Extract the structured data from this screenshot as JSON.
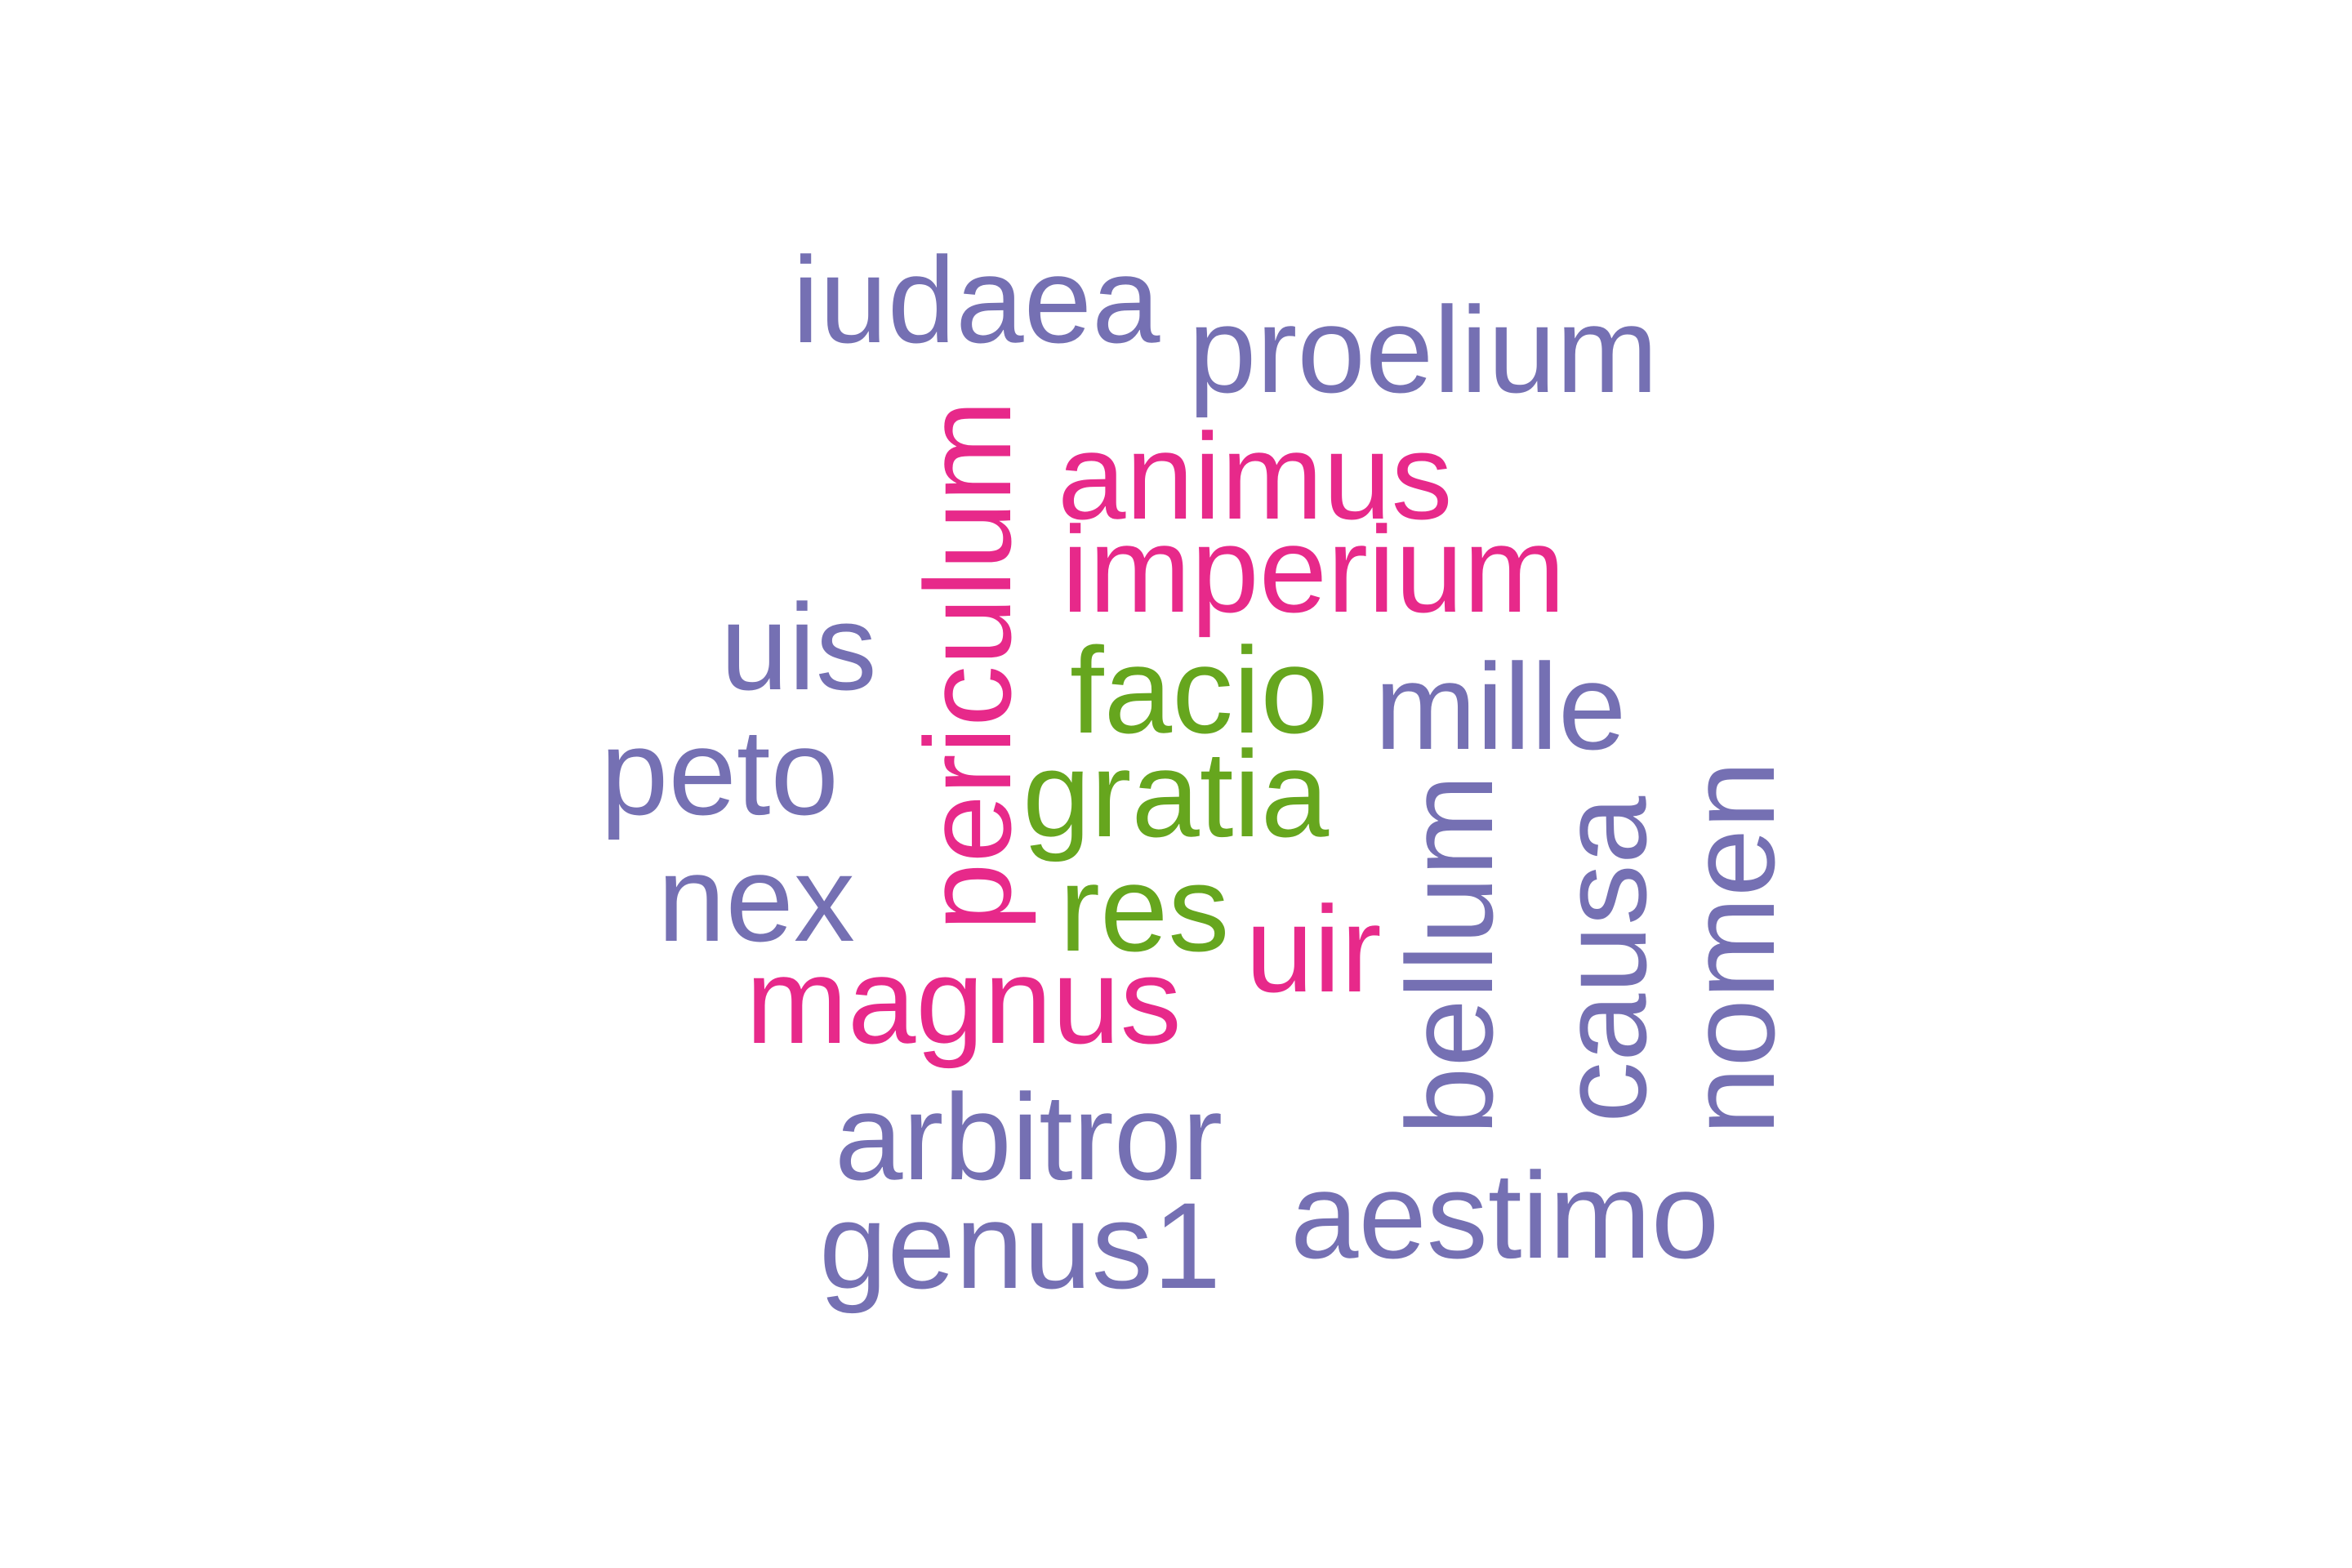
{
  "colors": {
    "purple": "#7570b3",
    "magenta": "#e7298a",
    "green": "#66a61e"
  },
  "words": [
    {
      "id": "iudaea",
      "text": "iudaea",
      "color": "#7570b3",
      "orientation": "horizontal"
    },
    {
      "id": "proelium",
      "text": "proelium",
      "color": "#7570b3",
      "orientation": "horizontal"
    },
    {
      "id": "animus",
      "text": "animus",
      "color": "#e7298a",
      "orientation": "horizontal"
    },
    {
      "id": "imperium",
      "text": "imperium",
      "color": "#e7298a",
      "orientation": "horizontal"
    },
    {
      "id": "uis",
      "text": "uis",
      "color": "#7570b3",
      "orientation": "horizontal"
    },
    {
      "id": "facio",
      "text": "facio",
      "color": "#66a61e",
      "orientation": "horizontal"
    },
    {
      "id": "mille",
      "text": "mille",
      "color": "#7570b3",
      "orientation": "horizontal"
    },
    {
      "id": "peto",
      "text": "peto",
      "color": "#7570b3",
      "orientation": "horizontal"
    },
    {
      "id": "gratia",
      "text": "gratia",
      "color": "#66a61e",
      "orientation": "horizontal"
    },
    {
      "id": "nex",
      "text": "nex",
      "color": "#7570b3",
      "orientation": "horizontal"
    },
    {
      "id": "res",
      "text": "res",
      "color": "#66a61e",
      "orientation": "horizontal"
    },
    {
      "id": "uir",
      "text": "uir",
      "color": "#e7298a",
      "orientation": "horizontal"
    },
    {
      "id": "magnus",
      "text": "magnus",
      "color": "#e7298a",
      "orientation": "horizontal"
    },
    {
      "id": "arbitror",
      "text": "arbitror",
      "color": "#7570b3",
      "orientation": "horizontal"
    },
    {
      "id": "genus1",
      "text": "genus1",
      "color": "#7570b3",
      "orientation": "horizontal"
    },
    {
      "id": "aestimo",
      "text": "aestimo",
      "color": "#7570b3",
      "orientation": "horizontal"
    },
    {
      "id": "periculum",
      "text": "periculum",
      "color": "#e7298a",
      "orientation": "vertical"
    },
    {
      "id": "bellum",
      "text": "bellum",
      "color": "#7570b3",
      "orientation": "vertical"
    },
    {
      "id": "causa",
      "text": "causa",
      "color": "#7570b3",
      "orientation": "vertical"
    },
    {
      "id": "nomen",
      "text": "nomen",
      "color": "#7570b3",
      "orientation": "vertical"
    }
  ]
}
